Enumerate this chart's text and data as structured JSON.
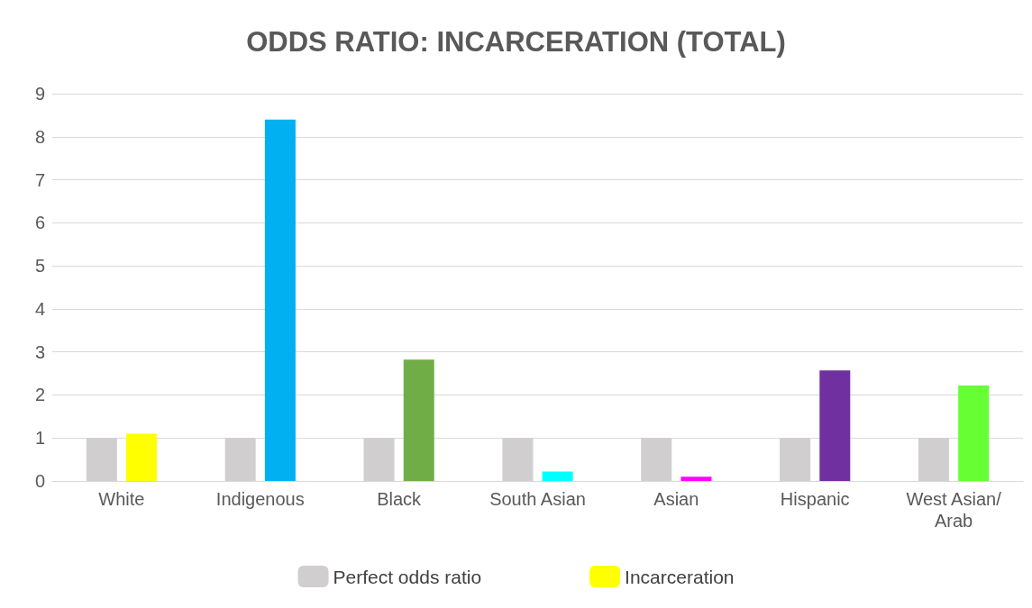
{
  "chart_data": {
    "type": "bar",
    "title": "ODDS RATIO: INCARCERATION (TOTAL)",
    "categories": [
      "White",
      "Indigenous",
      "Black",
      "South Asian",
      "Asian",
      "Hispanic",
      "West Asian/Arab"
    ],
    "series": [
      {
        "name": "Perfect odds ratio",
        "color": "#d0cece",
        "values": [
          1,
          1,
          1,
          1,
          1,
          1,
          1
        ]
      },
      {
        "name": "Incarceration",
        "colors": [
          "#ffff00",
          "#00b0f0",
          "#70ad47",
          "#00ffff",
          "#ff00ff",
          "#7030a0",
          "#66ff33"
        ],
        "values": [
          1.1,
          8.4,
          2.82,
          0.22,
          0.1,
          2.57,
          2.22
        ]
      }
    ],
    "ylim": [
      0,
      9
    ],
    "yticks": [
      0,
      1,
      2,
      3,
      4,
      5,
      6,
      7,
      8,
      9
    ],
    "grid": "y",
    "legend": "bottom"
  }
}
